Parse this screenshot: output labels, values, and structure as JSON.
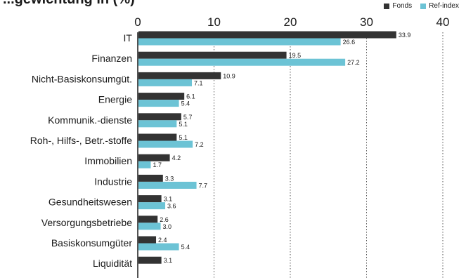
{
  "chart_data": {
    "type": "bar",
    "title": "...gewichtung in (%)",
    "categories": [
      "IT",
      "Finanzen",
      "Nicht-Basiskonsumgüt.",
      "Energie",
      "Kommunik.-dienste",
      "Roh-, Hilfs-, Betr.-stoffe",
      "Immobilien",
      "Industrie",
      "Gesundheitswesen",
      "Versorgungsbetriebe",
      "Basiskonsumgüter",
      "Liquidität"
    ],
    "series": [
      {
        "name": "Fonds",
        "color": "#333333",
        "values": [
          33.9,
          19.5,
          10.9,
          6.1,
          5.7,
          5.1,
          4.2,
          3.3,
          3.1,
          2.6,
          2.4,
          3.1
        ]
      },
      {
        "name": "Ref-index",
        "color": "#6cc3d5",
        "values": [
          26.6,
          27.2,
          7.1,
          5.4,
          5.1,
          7.2,
          1.7,
          7.7,
          3.6,
          3.0,
          5.4,
          null
        ]
      }
    ],
    "xlim": [
      0,
      40
    ],
    "xticks": [
      0,
      10,
      20,
      30,
      40
    ],
    "grid": "vertical dotted",
    "legend_position": "top-right"
  }
}
